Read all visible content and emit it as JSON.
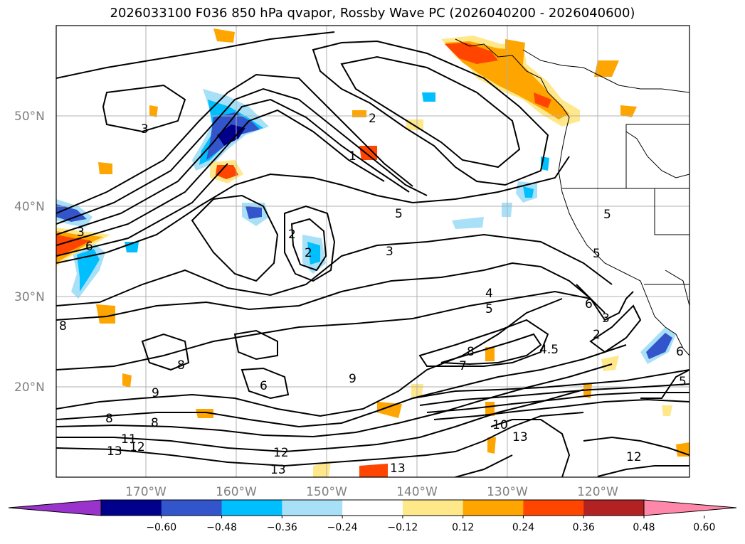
{
  "title": "2026033100 F036 850 hPa qvapor, Rossby Wave PC (2026040200 - 2026040600)",
  "lat_ticks": [
    "50°N",
    "40°N",
    "30°N",
    "20°N"
  ],
  "lon_ticks": [
    "170°W",
    "160°W",
    "150°W",
    "140°W",
    "130°W",
    "120°W"
  ],
  "colorbar": {
    "colors": [
      "#9933cc",
      "#00008b",
      "#3355cc",
      "#00bfff",
      "#a8e0f8",
      "#ffffff",
      "#ffe88a",
      "#ffa500",
      "#ff4500",
      "#b22222",
      "#ff88aa"
    ],
    "labels": [
      "−0.60",
      "−0.48",
      "−0.36",
      "−0.24",
      "−0.12",
      "0.12",
      "0.24",
      "0.36",
      "0.48",
      "0.60"
    ]
  },
  "contour_labels": [
    "3",
    "2",
    "1",
    "5",
    "3",
    "2",
    "2",
    "6",
    "3",
    "8",
    "4",
    "5",
    "6",
    "3",
    "2",
    "7",
    "8",
    "4.5",
    "8",
    "9",
    "6",
    "9",
    "8",
    "8",
    "11",
    "12",
    "13",
    "12",
    "13",
    "10",
    "13",
    "13",
    "12",
    "5",
    "5",
    "6",
    "5"
  ]
}
